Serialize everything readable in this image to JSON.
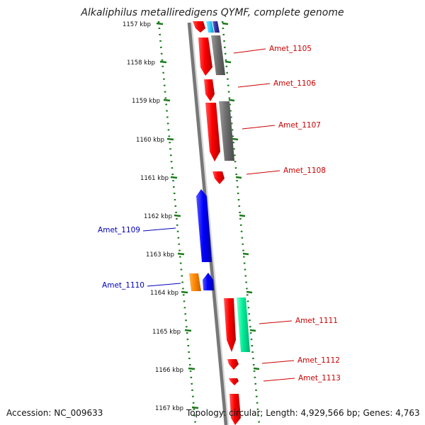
{
  "title": "Alkaliphilus metalliredigens QYMF, complete genome",
  "accession": "Accession: NC_009633",
  "topology": "Topology: circular; Length: 4,929,566 bp; Genes: 4,763",
  "ruler": [
    "1157 kbp",
    "1158 kbp",
    "1159 kbp",
    "1160 kbp",
    "1161 kbp",
    "1162 kbp",
    "1163 kbp",
    "1164 kbp",
    "1165 kbp",
    "1166 kbp",
    "1167 kbp"
  ],
  "genes_right": [
    "Amet_1105",
    "Amet_1106",
    "Amet_1107",
    "Amet_1108",
    "Amet_1111",
    "Amet_1112",
    "Amet_1113"
  ],
  "genes_left": [
    "Amet_1109",
    "Amet_1110"
  ],
  "colors": {
    "forward_gene": "#ff0000",
    "reverse_gene": "#0000ff",
    "gray_feature": "#707070",
    "rna_feature": "#00ee99",
    "orange_feature": "#ff8800",
    "light_blue_feature": "#33ccff",
    "ruler_ticks": "#1a7a1a",
    "right_label": "#cc0000",
    "left_label": "#0000bb"
  }
}
